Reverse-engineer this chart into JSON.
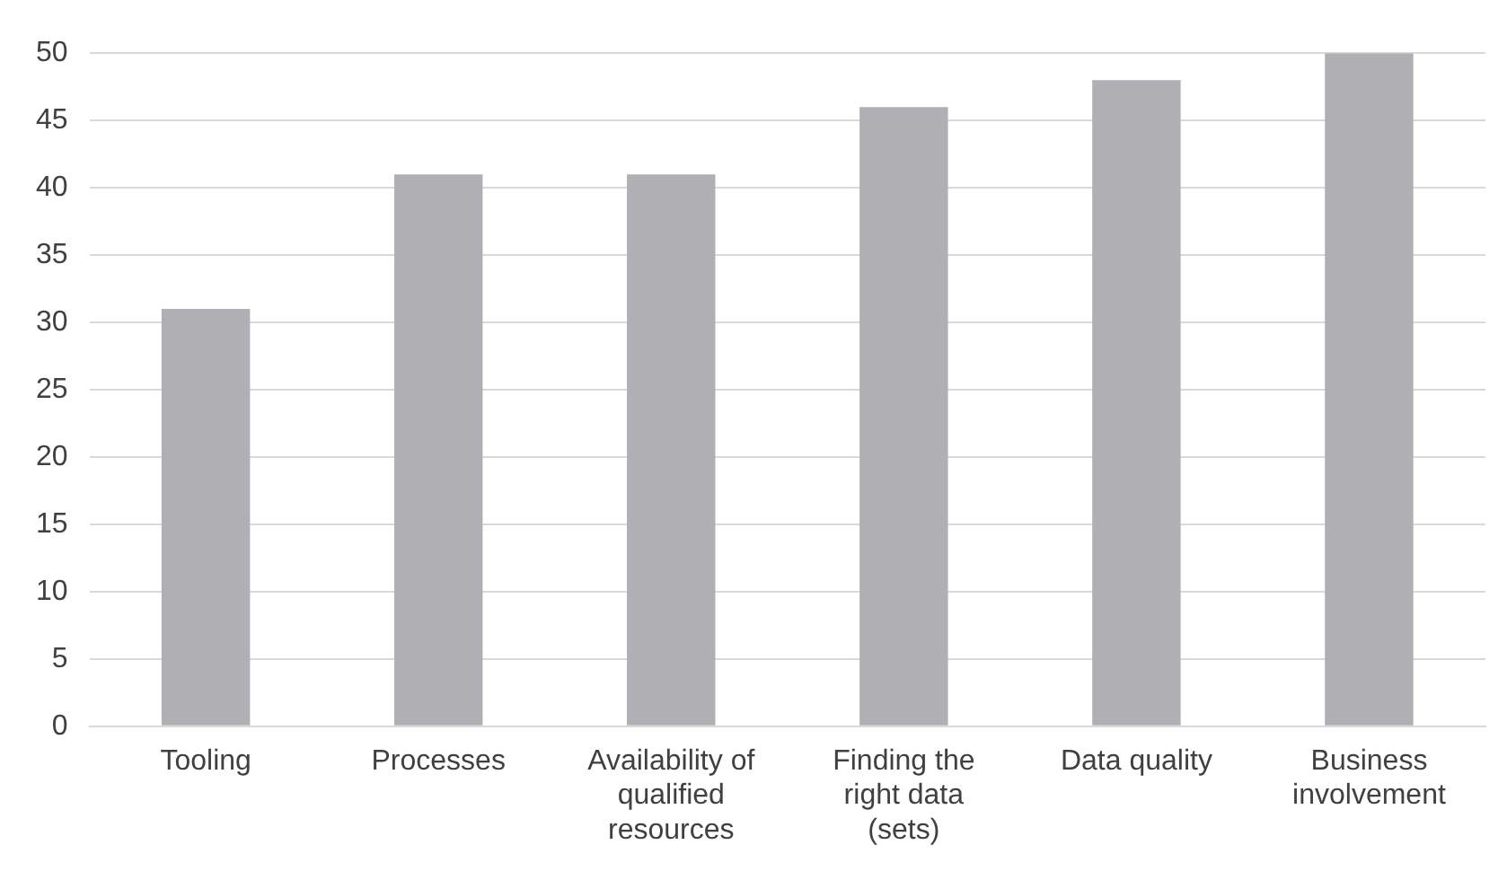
{
  "chart_data": {
    "type": "bar",
    "categories": [
      "Tooling",
      "Processes",
      "Availability of qualified resources",
      "Finding the right data (sets)",
      "Data quality",
      "Business involvement"
    ],
    "values": [
      31,
      41,
      41,
      46,
      48,
      50
    ],
    "color": "#b0b0b4",
    "ylim": [
      0,
      50
    ],
    "yticks": [
      0,
      5,
      10,
      15,
      20,
      25,
      30,
      35,
      40,
      45,
      50
    ],
    "grid": "y"
  }
}
